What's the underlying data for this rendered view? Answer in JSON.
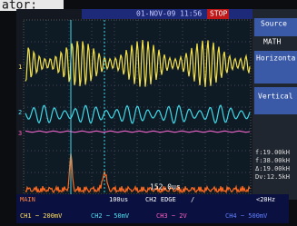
{
  "caption": "ator:",
  "top_bar": {
    "timestamp": "01-NOV-09 11:56",
    "status": "STOP"
  },
  "menu": {
    "items": [
      "Source",
      "MATH",
      "Horizonta",
      "Vertical"
    ],
    "readouts": [
      "f:19.00kH",
      "f:38.00kH",
      "Δ:19.00kH",
      "Dv:12.5kH"
    ]
  },
  "channel_markers": [
    "1",
    "2",
    "3"
  ],
  "cursor_readout": "152.0us",
  "status_bar": {
    "mode": "MAIN",
    "timebase": "100us",
    "trigger": "CH2 EDGE",
    "slope": "/",
    "trigger_freq": "<20Hz",
    "channels": [
      "CH1 ~ 200mV",
      "CH2 ~ 50mV",
      "CH3 ~ 2V",
      "CH4 ~ 500mV"
    ]
  }
}
